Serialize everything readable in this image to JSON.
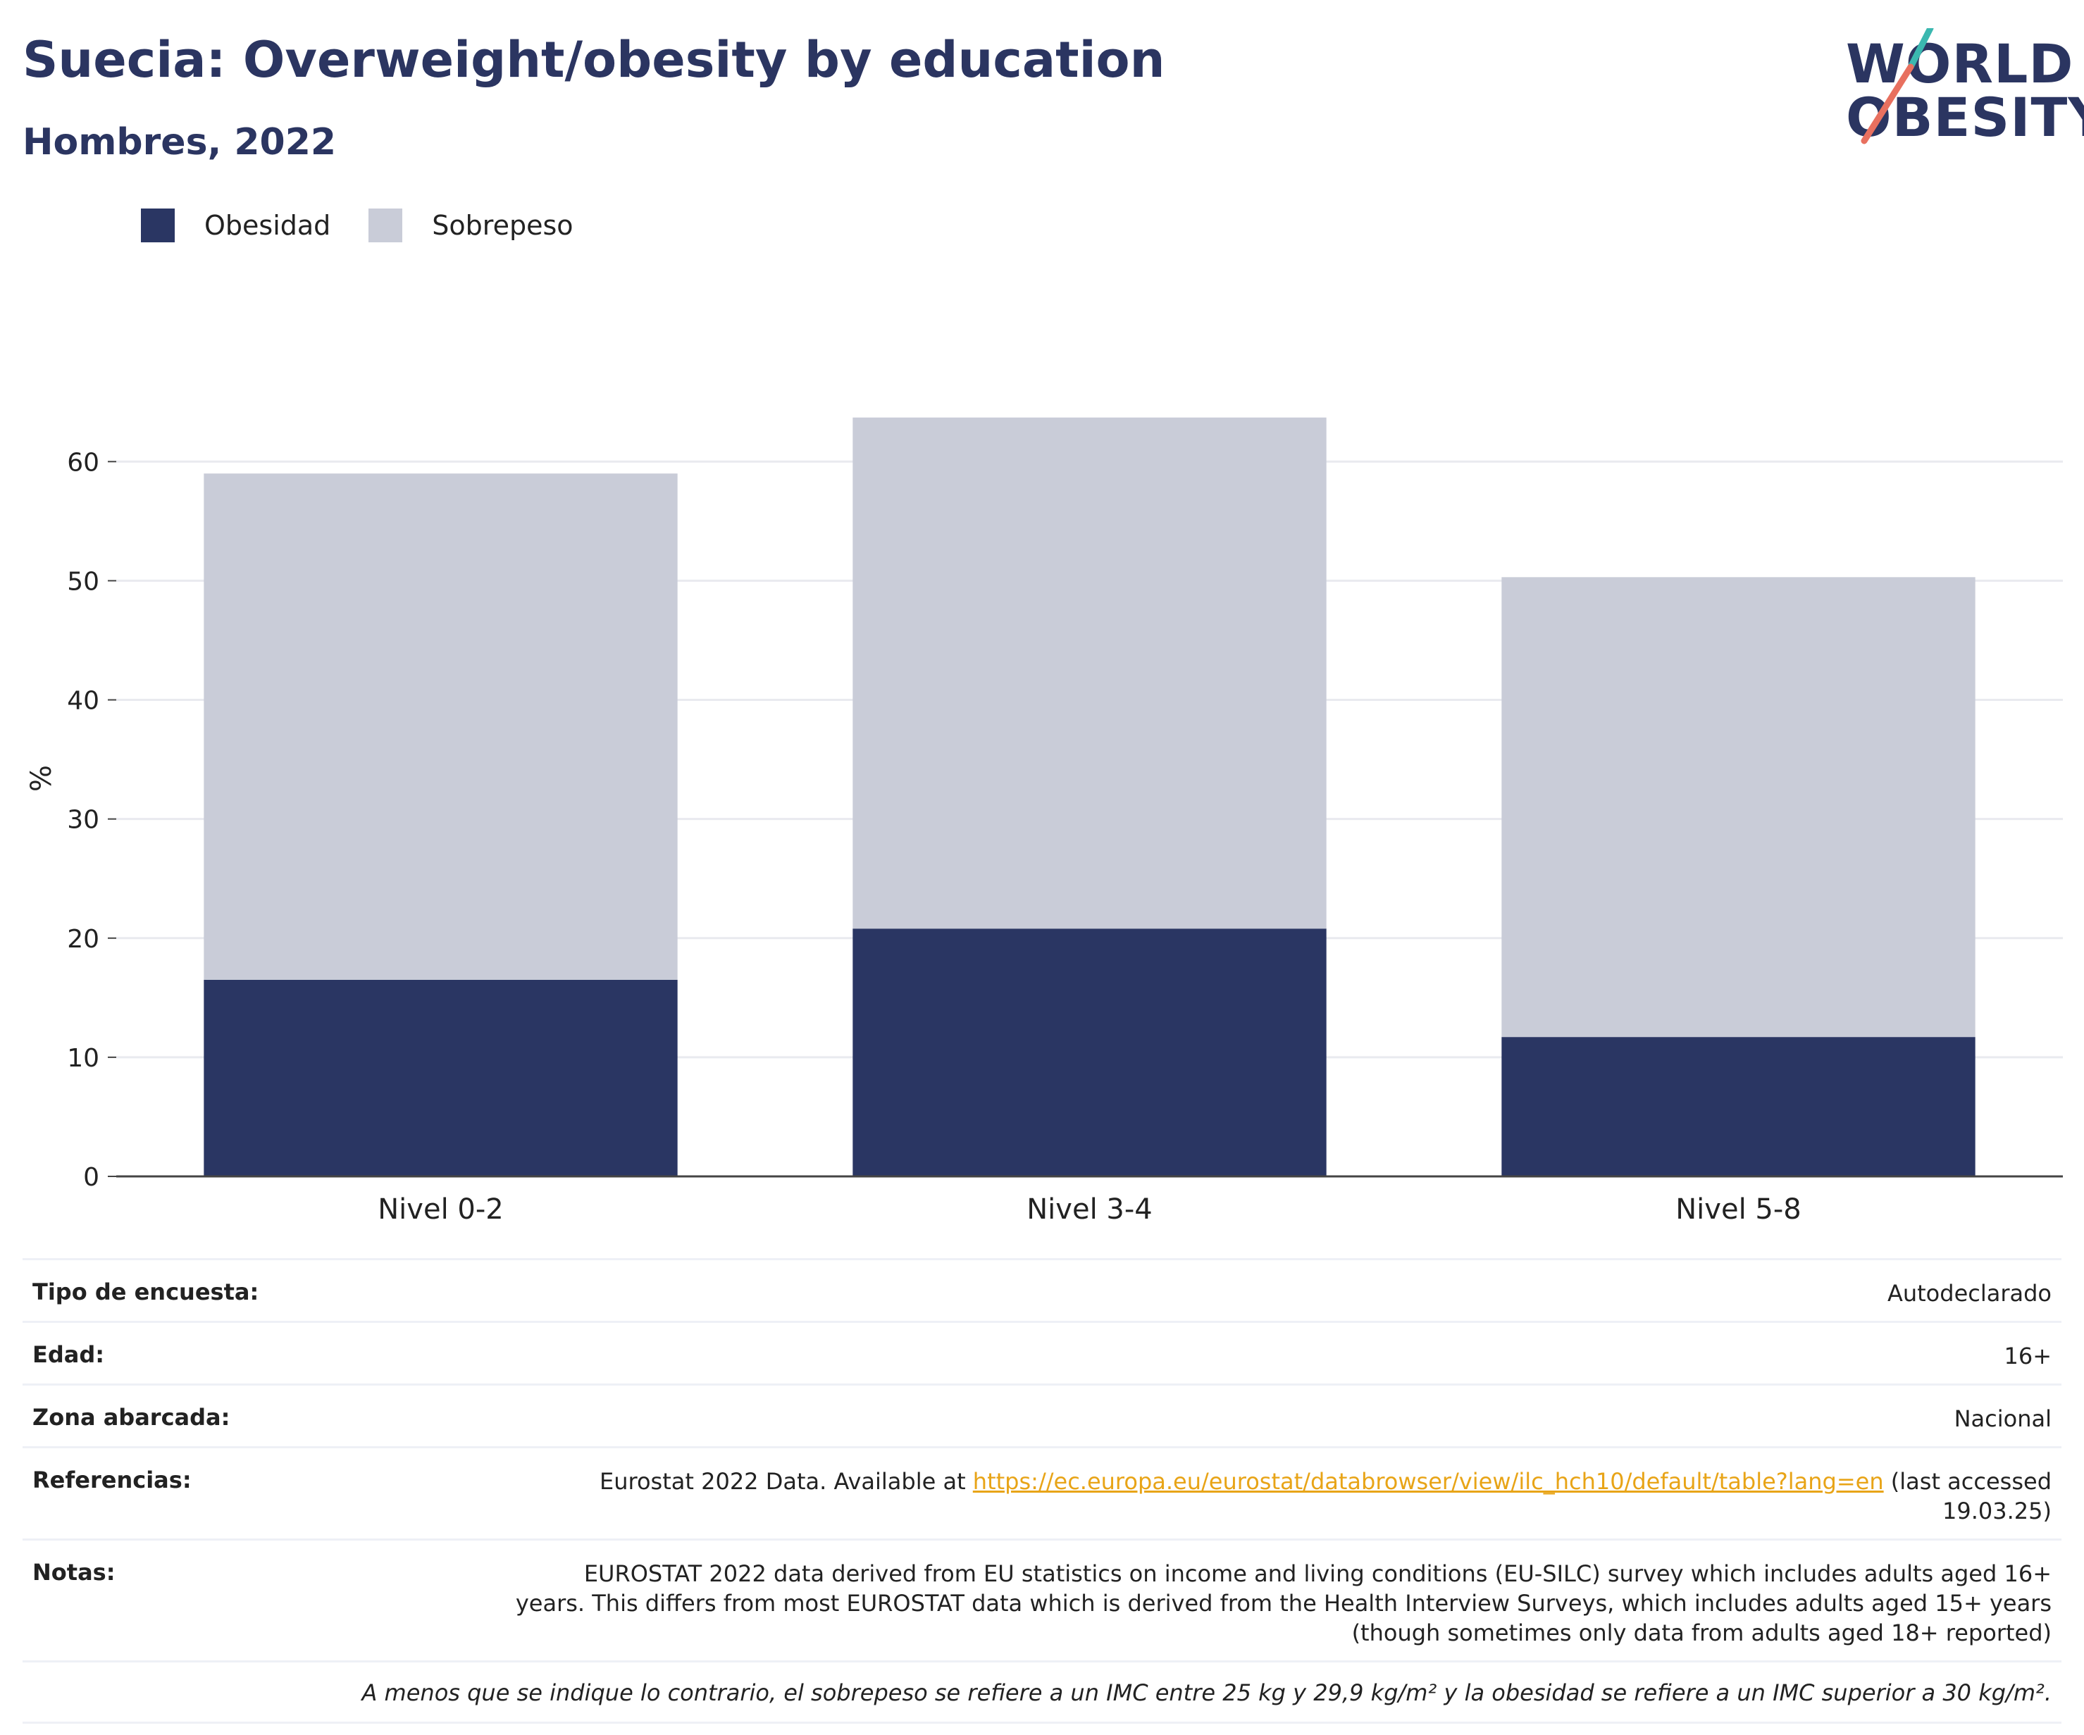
{
  "header": {
    "title": "Suecia: Overweight/obesity by education",
    "subtitle": "Hombres, 2022"
  },
  "logo": {
    "line1": "WORLD",
    "line2": "OBESITY",
    "icon": "world-obesity-logo"
  },
  "legend": [
    {
      "label": "Obesidad",
      "color": "#2a3663"
    },
    {
      "label": "Sobrepeso",
      "color": "#c9ccd8"
    }
  ],
  "chart_data": {
    "type": "bar",
    "stacked": true,
    "categories": [
      "Nivel 0-2",
      "Nivel 3-4",
      "Nivel 5-8"
    ],
    "series": [
      {
        "name": "Obesidad",
        "values": [
          16.5,
          20.8,
          11.7
        ],
        "color": "#2a3663"
      },
      {
        "name": "Sobrepeso",
        "values": [
          42.5,
          42.9,
          38.6
        ],
        "color": "#c9ccd8"
      }
    ],
    "ylabel": "%",
    "ylim": [
      0,
      68
    ],
    "yticks": [
      0,
      10,
      20,
      30,
      40,
      50,
      60
    ],
    "grid": true,
    "legend_position": "top-left"
  },
  "info": {
    "survey_type": {
      "label": "Tipo de encuesta:",
      "value": "Autodeclarado"
    },
    "age": {
      "label": "Edad:",
      "value": "16+"
    },
    "area": {
      "label": "Zona abarcada:",
      "value": "Nacional"
    },
    "references": {
      "label": "Referencias:",
      "prefix": "Eurostat 2022 Data. Available at ",
      "link": "https://ec.europa.eu/eurostat/databrowser/view/ilc_hch10/default/table?lang=en",
      "suffix": " (last accessed",
      "date": "19.03.25)"
    },
    "notes": {
      "label": "Notas:",
      "line1": "EUROSTAT 2022 data derived from EU statistics on income and living conditions (EU-SILC) survey which includes adults aged 16+",
      "line2": "years. This differs from most EUROSTAT data which is derived from the Health Interview Surveys, which includes adults aged 15+ years",
      "line3": "(though sometimes only data from adults aged 18+ reported)"
    },
    "footnote": "A menos que se indique lo contrario, el sobrepeso se refiere a un IMC entre 25 kg y 29,9 kg/m² y la obesidad se refiere a un IMC superior a 30 kg/m²."
  }
}
